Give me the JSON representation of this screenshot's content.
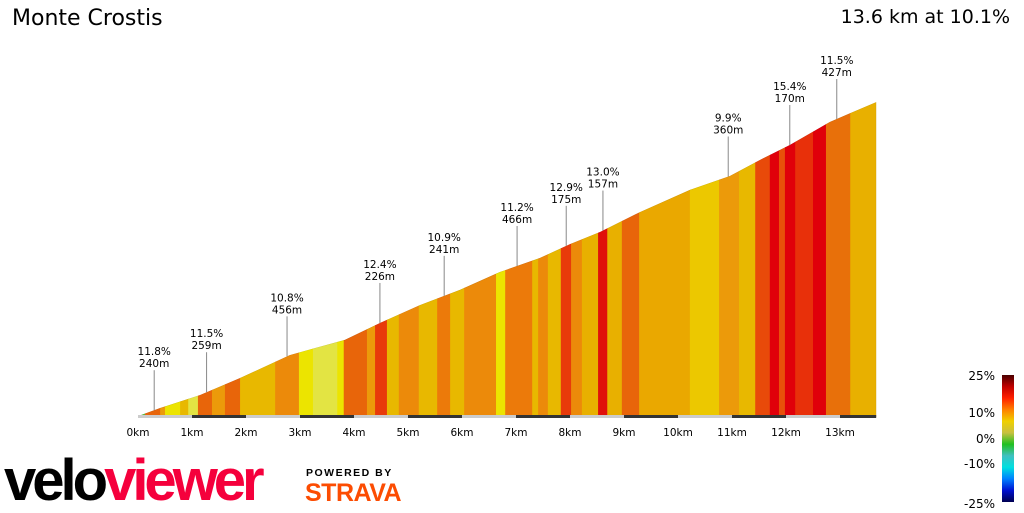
{
  "header": {
    "title": "Monte Crostis",
    "summary": "13.6 km at 10.1%"
  },
  "logo": {
    "velo": "velo",
    "viewer": "viewer",
    "powered_by": "POWERED BY",
    "strava": "STRAVA"
  },
  "chart_data": {
    "type": "area",
    "title": "Monte Crostis",
    "x_unit": "km",
    "xlim": [
      0,
      13.67
    ],
    "x_ticks": [
      "0km",
      "1km",
      "2km",
      "3km",
      "4km",
      "5km",
      "6km",
      "7km",
      "8km",
      "9km",
      "10km",
      "11km",
      "12km",
      "13km"
    ],
    "profile": [
      [
        0,
        4
      ],
      [
        0.41,
        39
      ],
      [
        1.15,
        96
      ],
      [
        1.89,
        170
      ],
      [
        2.81,
        270
      ],
      [
        3.28,
        301
      ],
      [
        3.83,
        336
      ],
      [
        4.48,
        410
      ],
      [
        5.22,
        488
      ],
      [
        5.96,
        554
      ],
      [
        6.7,
        632
      ],
      [
        7.44,
        693
      ],
      [
        8.0,
        754
      ],
      [
        8.56,
        807
      ],
      [
        9.3,
        894
      ],
      [
        10.22,
        990
      ],
      [
        10.96,
        1051
      ],
      [
        11.52,
        1121
      ],
      [
        12.07,
        1186
      ],
      [
        12.81,
        1286
      ],
      [
        13.19,
        1325
      ],
      [
        13.67,
        1373
      ]
    ],
    "bands": [
      [
        0,
        0.13,
        "#5cbf3a"
      ],
      [
        0.13,
        0.41,
        "#e8650a"
      ],
      [
        0.41,
        0.5,
        "#ec9a0a"
      ],
      [
        0.5,
        0.78,
        "#ece400"
      ],
      [
        0.78,
        0.93,
        "#e8b800"
      ],
      [
        0.93,
        1.11,
        "#e3e443"
      ],
      [
        1.11,
        1.37,
        "#e8650a"
      ],
      [
        1.37,
        1.61,
        "#ec9a0a"
      ],
      [
        1.61,
        1.89,
        "#e8650a"
      ],
      [
        1.89,
        2.54,
        "#e8b800"
      ],
      [
        2.54,
        2.98,
        "#ec8a0a"
      ],
      [
        2.98,
        3.24,
        "#ece400"
      ],
      [
        3.24,
        3.69,
        "#e3e443"
      ],
      [
        3.69,
        3.81,
        "#ece400"
      ],
      [
        3.81,
        4.24,
        "#e8650a"
      ],
      [
        4.24,
        4.39,
        "#ec9a0a"
      ],
      [
        4.39,
        4.61,
        "#e83a0a"
      ],
      [
        4.61,
        4.83,
        "#e8b800"
      ],
      [
        4.83,
        5.2,
        "#ec8a0a"
      ],
      [
        5.2,
        5.54,
        "#e8b800"
      ],
      [
        5.54,
        5.78,
        "#ec7a0a"
      ],
      [
        5.78,
        6.04,
        "#e8b800"
      ],
      [
        6.04,
        6.63,
        "#ec8a0a"
      ],
      [
        6.63,
        6.8,
        "#ece400"
      ],
      [
        6.8,
        7.3,
        "#ec7a0a"
      ],
      [
        7.3,
        7.41,
        "#e8b800"
      ],
      [
        7.41,
        7.59,
        "#ec8a0a"
      ],
      [
        7.59,
        7.83,
        "#e8b800"
      ],
      [
        7.83,
        8.02,
        "#e83a0a"
      ],
      [
        8.02,
        8.22,
        "#ec8a0a"
      ],
      [
        8.22,
        8.52,
        "#e8b000"
      ],
      [
        8.52,
        8.69,
        "#e0100a"
      ],
      [
        8.69,
        8.96,
        "#e8b000"
      ],
      [
        8.96,
        9.28,
        "#e8650a"
      ],
      [
        9.28,
        10.22,
        "#eaa800"
      ],
      [
        10.22,
        10.76,
        "#ecc800"
      ],
      [
        10.76,
        11.13,
        "#ec9a0a"
      ],
      [
        11.13,
        11.43,
        "#e8b800"
      ],
      [
        11.43,
        11.7,
        "#e84a0a"
      ],
      [
        11.7,
        11.87,
        "#e0000a"
      ],
      [
        11.87,
        11.98,
        "#e8500a"
      ],
      [
        11.98,
        12.17,
        "#e0000a"
      ],
      [
        12.17,
        12.5,
        "#e8300a"
      ],
      [
        12.5,
        12.74,
        "#e0000a"
      ],
      [
        12.74,
        13.19,
        "#e8700a"
      ],
      [
        13.19,
        13.67,
        "#e8b000"
      ]
    ],
    "annotations": [
      {
        "km": 0.3,
        "grade": "11.8%",
        "length": "240m"
      },
      {
        "km": 1.27,
        "grade": "11.5%",
        "length": "259m"
      },
      {
        "km": 2.76,
        "grade": "10.8%",
        "length": "456m"
      },
      {
        "km": 4.48,
        "grade": "12.4%",
        "length": "226m"
      },
      {
        "km": 5.67,
        "grade": "10.9%",
        "length": "241m"
      },
      {
        "km": 7.02,
        "grade": "11.2%",
        "length": "466m"
      },
      {
        "km": 7.93,
        "grade": "12.9%",
        "length": "175m"
      },
      {
        "km": 8.61,
        "grade": "13.0%",
        "length": "157m"
      },
      {
        "km": 10.93,
        "grade": "9.9%",
        "length": "360m"
      },
      {
        "km": 12.07,
        "grade": "15.4%",
        "length": "170m"
      },
      {
        "km": 12.94,
        "grade": "11.5%",
        "length": "427m"
      }
    ],
    "legend": {
      "labels": [
        "25%",
        "10%",
        "0%",
        "-10%",
        "-25%"
      ],
      "colors": [
        "#4a0000",
        "#c00000",
        "#ff2000",
        "#ff8000",
        "#f0d000",
        "#c8c040",
        "#20c020",
        "#40c0c0",
        "#00e0e0",
        "#0080ff",
        "#0010d0",
        "#000050"
      ]
    }
  }
}
